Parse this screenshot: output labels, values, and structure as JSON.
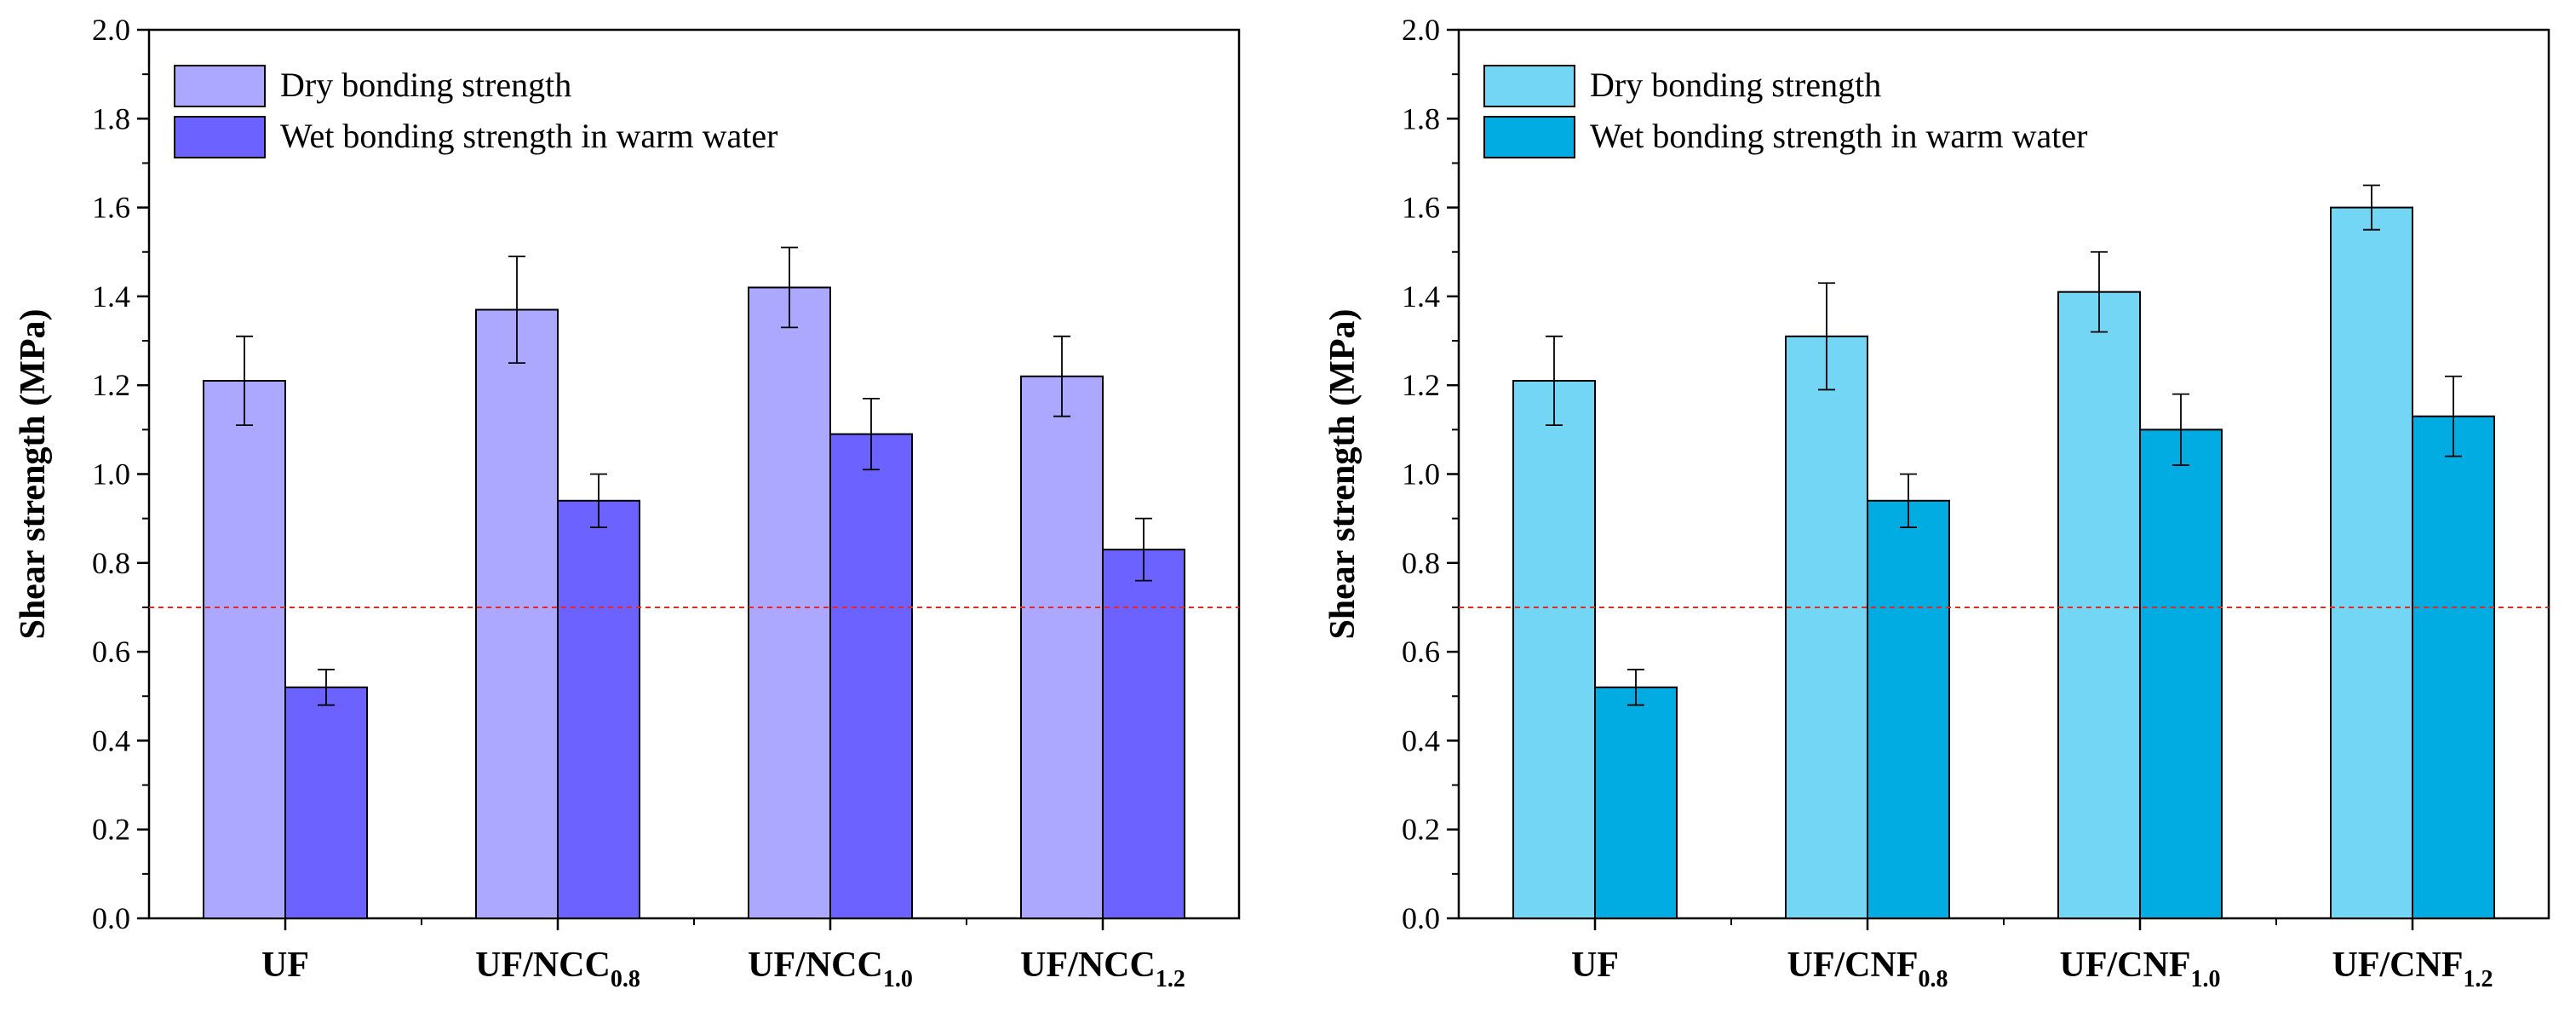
{
  "chart_data": [
    {
      "type": "bar",
      "ylabel": "Shear strength (MPa)",
      "ylim": [
        0,
        2.0
      ],
      "yticks": [
        "0.0",
        "0.2",
        "0.4",
        "0.6",
        "0.8",
        "1.0",
        "1.2",
        "1.4",
        "1.6",
        "1.8",
        "2.0"
      ],
      "reference_line": 0.7,
      "legend_position": "top-left",
      "categories": [
        {
          "main": "UF",
          "sub": ""
        },
        {
          "main": "UF/NCC",
          "sub": "0.8"
        },
        {
          "main": "UF/NCC",
          "sub": "1.0"
        },
        {
          "main": "UF/NCC",
          "sub": "1.2"
        }
      ],
      "series": [
        {
          "name": "Dry bonding strength",
          "color": "#ADA8FF",
          "values": [
            1.21,
            1.37,
            1.42,
            1.22
          ],
          "errors": [
            0.1,
            0.12,
            0.09,
            0.09
          ]
        },
        {
          "name": "Wet bonding strength in warm water",
          "color": "#6B62FF",
          "values": [
            0.52,
            0.94,
            1.09,
            0.83
          ],
          "errors": [
            0.04,
            0.06,
            0.08,
            0.07
          ]
        }
      ]
    },
    {
      "type": "bar",
      "ylabel": "Shear strength (MPa)",
      "ylim": [
        0,
        2.0
      ],
      "yticks": [
        "0.0",
        "0.2",
        "0.4",
        "0.6",
        "0.8",
        "1.0",
        "1.2",
        "1.4",
        "1.6",
        "1.8",
        "2.0"
      ],
      "reference_line": 0.7,
      "legend_position": "top-left",
      "categories": [
        {
          "main": "UF",
          "sub": ""
        },
        {
          "main": "UF/CNF",
          "sub": "0.8"
        },
        {
          "main": "UF/CNF",
          "sub": "1.0"
        },
        {
          "main": "UF/CNF",
          "sub": "1.2"
        }
      ],
      "series": [
        {
          "name": "Dry bonding strength",
          "color": "#72D6F4",
          "values": [
            1.21,
            1.31,
            1.41,
            1.6
          ],
          "errors": [
            0.1,
            0.12,
            0.09,
            0.05
          ]
        },
        {
          "name": "Wet bonding strength in warm water",
          "color": "#00ACE1",
          "values": [
            0.52,
            0.94,
            1.1,
            1.13
          ],
          "errors": [
            0.04,
            0.06,
            0.08,
            0.09
          ]
        }
      ]
    }
  ]
}
